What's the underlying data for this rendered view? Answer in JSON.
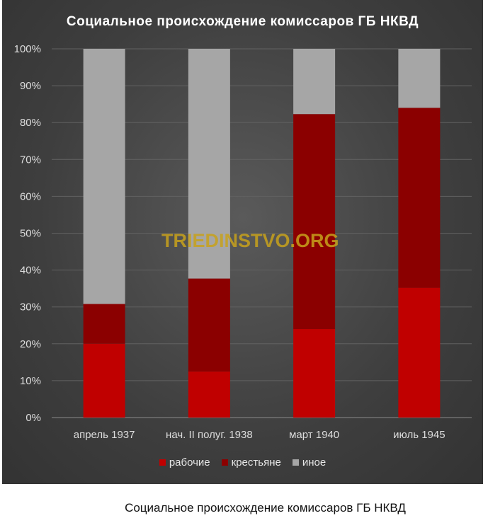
{
  "chart_data": {
    "type": "bar",
    "stacked": true,
    "title": "Социальное происхождение комиссаров ГБ НКВД",
    "categories": [
      "апрель 1937",
      "нач. II полуг. 1938",
      "март 1940",
      "июль 1945"
    ],
    "series": [
      {
        "name": "рабочие",
        "color": "#c00000",
        "values": [
          20,
          12.5,
          24,
          35.2
        ]
      },
      {
        "name": "крестьяне",
        "color": "#8b0000",
        "values": [
          10.8,
          25.2,
          58.3,
          48.8
        ]
      },
      {
        "name": "иное",
        "color": "#a6a6a6",
        "values": [
          69.2,
          62.3,
          17.7,
          16.0
        ]
      }
    ],
    "yticks": [
      "0%",
      "10%",
      "20%",
      "30%",
      "40%",
      "50%",
      "60%",
      "70%",
      "80%",
      "90%",
      "100%"
    ],
    "ylim": [
      0,
      100
    ],
    "grid": true,
    "legend_position": "bottom"
  },
  "watermark": "TRIEDINSTVO.ORG",
  "caption": "Социальное происхождение комиссаров ГБ НКВД"
}
